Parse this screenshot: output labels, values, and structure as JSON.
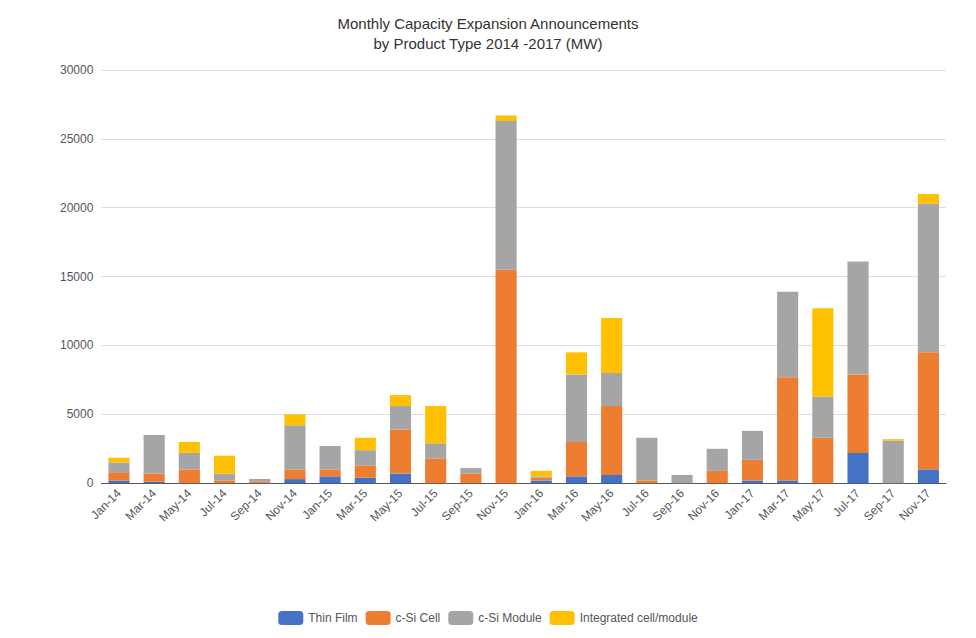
{
  "chart_data": {
    "type": "bar",
    "title": "Monthly Capacity Expansion Announcements\nby Product Type 2014 -2017 (MW)",
    "categories": [
      "Jan-14",
      "Mar-14",
      "May-14",
      "Jul-14",
      "Sep-14",
      "Nov-14",
      "Jan-15",
      "Mar-15",
      "May-15",
      "Jul-15",
      "Sep-15",
      "Nov-15",
      "Jan-16",
      "Mar-16",
      "May-16",
      "Jul-16",
      "Sep-16",
      "Nov-16",
      "Jan-17",
      "Mar-17",
      "May-17",
      "Jul-17",
      "Sep-17",
      "Nov-17"
    ],
    "series": [
      {
        "name": "Thin Film",
        "color": "#4472C4",
        "values": [
          200,
          100,
          0,
          0,
          0,
          300,
          500,
          400,
          700,
          0,
          0,
          0,
          200,
          500,
          600,
          0,
          0,
          0,
          200,
          200,
          0,
          2200,
          0,
          1000
        ]
      },
      {
        "name": "c-Si Cell",
        "color": "#ED7D31",
        "values": [
          600,
          600,
          1000,
          200,
          100,
          700,
          500,
          900,
          3200,
          1800,
          700,
          15500,
          200,
          2500,
          5000,
          200,
          0,
          900,
          1500,
          7500,
          3300,
          5700,
          0,
          8500
        ]
      },
      {
        "name": "c-Si Module",
        "color": "#A5A5A5",
        "values": [
          700,
          2800,
          1200,
          500,
          200,
          3200,
          1700,
          1100,
          1700,
          1100,
          400,
          10800,
          100,
          4900,
          2400,
          3100,
          600,
          1600,
          2100,
          6200,
          3000,
          8200,
          3100,
          10800
        ]
      },
      {
        "name": "Integrated cell/module",
        "color": "#FFC000",
        "values": [
          350,
          0,
          800,
          1300,
          0,
          800,
          0,
          900,
          800,
          2700,
          0,
          400,
          400,
          1600,
          4000,
          0,
          0,
          0,
          0,
          0,
          6400,
          0,
          100,
          700
        ]
      }
    ],
    "stacked": true,
    "ylim": [
      0,
      30000
    ],
    "yticks": [
      0,
      5000,
      10000,
      15000,
      20000,
      25000,
      30000
    ],
    "grid": true,
    "legend": "bottom"
  }
}
